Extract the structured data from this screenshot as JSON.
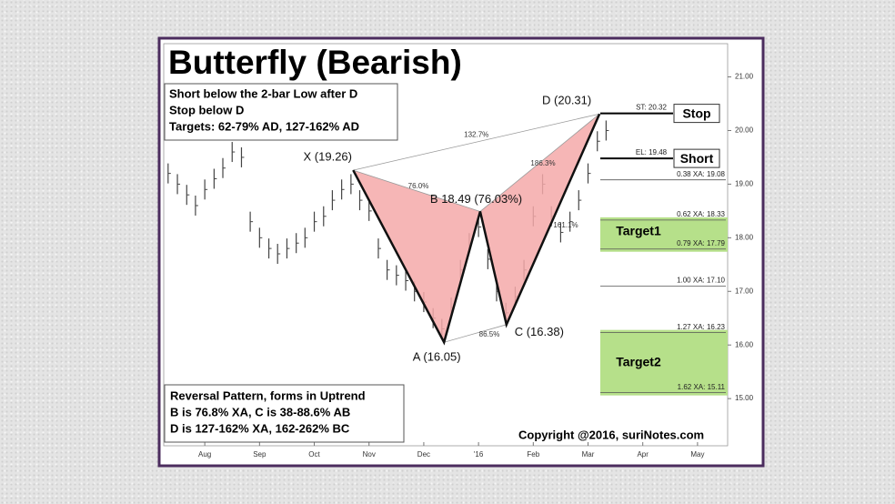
{
  "chart_data": {
    "type": "harmonic",
    "title": "Butterfly (Bearish)",
    "rules": [
      "Short below the 2-bar Low after D",
      "Stop below D",
      "Targets: 62-79% AD, 127-162% AD"
    ],
    "notes": [
      "Reversal Pattern, forms in Uptrend",
      "B is 76.8% XA, C is 38-88.6% AB",
      "D is 127-162% XA, 162-262% BC"
    ],
    "copyright": "Copyright @2016, suriNotes.com",
    "xlim": [
      -0.75,
      9.55
    ],
    "xticks": [
      {
        "value": 0,
        "label": "Aug"
      },
      {
        "value": 1,
        "label": "Sep"
      },
      {
        "value": 2,
        "label": "Oct"
      },
      {
        "value": 3,
        "label": "Nov"
      },
      {
        "value": 4,
        "label": "Dec"
      },
      {
        "value": 5,
        "label": "'16"
      },
      {
        "value": 6,
        "label": "Feb"
      },
      {
        "value": 7,
        "label": "Mar"
      },
      {
        "value": 8,
        "label": "Apr"
      },
      {
        "value": 9,
        "label": "May"
      }
    ],
    "ylim": [
      14.12,
      21.62
    ],
    "yticks": [
      {
        "value": 15,
        "label": "15.00"
      },
      {
        "value": 16,
        "label": "16.00"
      },
      {
        "value": 17,
        "label": "17.00"
      },
      {
        "value": 18,
        "label": "18.00"
      },
      {
        "value": 19,
        "label": "19.00"
      },
      {
        "value": 20,
        "label": "20.00"
      },
      {
        "value": 21,
        "label": "21.00"
      }
    ],
    "price": {
      "color": "#444444",
      "x": [
        -0.67,
        -0.5,
        -0.33,
        -0.17,
        0,
        0.17,
        0.33,
        0.5,
        0.67,
        0.83,
        1,
        1.17,
        1.33,
        1.5,
        1.67,
        1.83,
        2,
        2.17,
        2.33,
        2.5,
        2.67,
        2.83,
        3,
        3.17,
        3.33,
        3.5,
        3.67,
        3.83,
        4,
        4.17,
        4.33,
        4.5,
        4.67,
        4.83,
        5,
        5.17,
        5.33,
        5.5,
        5.67,
        5.83,
        6,
        6.17,
        6.33,
        6.5,
        6.67,
        6.83,
        7,
        7.17,
        7.33
      ],
      "values": [
        19.2,
        19.0,
        18.8,
        18.6,
        18.9,
        19.1,
        19.3,
        19.6,
        19.5,
        18.3,
        18.0,
        17.8,
        17.7,
        17.8,
        17.9,
        18.0,
        18.3,
        18.4,
        18.7,
        18.9,
        19.0,
        18.7,
        18.5,
        17.8,
        17.4,
        17.3,
        17.2,
        17.0,
        16.8,
        16.5,
        16.3,
        16.7,
        17.4,
        17.9,
        18.2,
        17.6,
        17.0,
        16.6,
        16.9,
        17.4,
        18.4,
        19.0,
        18.4,
        18.1,
        18.3,
        18.7,
        19.2,
        19.8,
        20.0
      ]
    },
    "points": [
      {
        "label": "X (19.26)",
        "x": 2.71,
        "y": 19.26
      },
      {
        "label": "A (16.05)",
        "x": 4.37,
        "y": 16.05
      },
      {
        "label": "B 18.49 (76.03%)",
        "x": 5.03,
        "y": 18.49
      },
      {
        "label": "C (16.38)",
        "x": 5.51,
        "y": 16.38
      },
      {
        "label": "D (20.31)",
        "x": 7.21,
        "y": 20.31
      }
    ],
    "pattern_color": "#f4a9a9",
    "ratios": [
      "132.7%",
      "76.0%",
      "186.3%",
      "161.1%",
      "86.5%"
    ],
    "levels": [
      {
        "label": "ST: 20.32",
        "value": 20.32
      },
      {
        "label": "EL: 19.48",
        "value": 19.48
      },
      {
        "label": "0.38 XA: 19.08",
        "value": 19.08
      },
      {
        "label": "0.62 XA: 18.33",
        "value": 18.33
      },
      {
        "label": "0.79 XA: 17.79",
        "value": 17.79
      },
      {
        "label": "1.00 XA: 17.10",
        "value": 17.1
      },
      {
        "label": "1.27 XA: 16.23",
        "value": 16.23
      },
      {
        "label": "1.62 XA: 15.11",
        "value": 15.11
      }
    ],
    "orders": [
      "Stop",
      "Short"
    ],
    "targets": [
      {
        "label": "Target1",
        "from": 18.33,
        "to": 17.79
      },
      {
        "label": "Target2",
        "from": 16.23,
        "to": 15.11
      }
    ],
    "target_color": "#b6e08a"
  }
}
